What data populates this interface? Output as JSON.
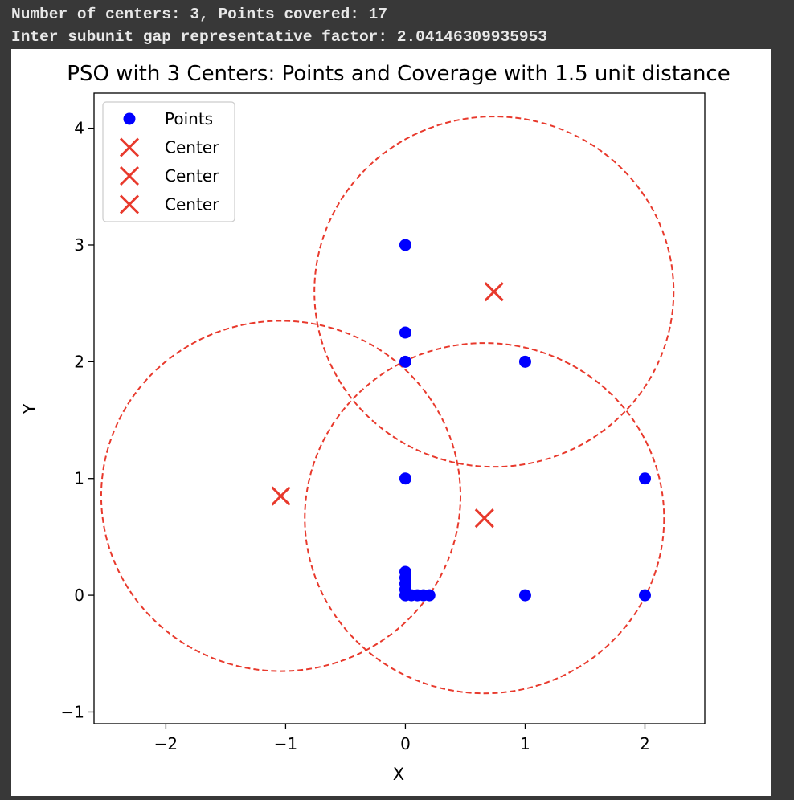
{
  "console": {
    "line1": "Number of centers: 3, Points covered: 17",
    "line2": "Inter subunit gap representative factor: 2.04146309935953"
  },
  "chart_data": {
    "type": "scatter",
    "title": "PSO with 3 Centers: Points and Coverage with 1.5 unit distance",
    "xlabel": "X",
    "ylabel": "Y",
    "xlim": [
      -2.6,
      2.5
    ],
    "ylim": [
      -1.1,
      4.3
    ],
    "xticks": [
      -2,
      -1,
      0,
      1,
      2
    ],
    "xtick_labels": [
      "−2",
      "−1",
      "0",
      "1",
      "2"
    ],
    "yticks": [
      -1,
      0,
      1,
      2,
      3,
      4
    ],
    "ytick_labels": [
      "−1",
      "0",
      "1",
      "2",
      "3",
      "4"
    ],
    "grid": false,
    "legend_position": "upper-left",
    "point_color": "#0000ff",
    "center_color": "#e8392c",
    "circle_radius": 1.5,
    "series": [
      {
        "name": "Points",
        "marker": "circle",
        "points": [
          [
            0,
            3
          ],
          [
            0,
            2.25
          ],
          [
            0,
            2
          ],
          [
            1,
            2
          ],
          [
            0,
            1
          ],
          [
            2,
            1
          ],
          [
            0,
            0.2
          ],
          [
            0,
            0.15
          ],
          [
            0,
            0.1
          ],
          [
            0,
            0.05
          ],
          [
            0,
            0
          ],
          [
            0.05,
            0
          ],
          [
            0.1,
            0
          ],
          [
            0.15,
            0
          ],
          [
            0.2,
            0
          ],
          [
            1,
            0
          ],
          [
            2,
            0
          ]
        ]
      },
      {
        "name": "Center",
        "marker": "x",
        "points": [
          [
            0.74,
            2.6
          ]
        ]
      },
      {
        "name": "Center",
        "marker": "x",
        "points": [
          [
            -1.04,
            0.85
          ]
        ]
      },
      {
        "name": "Center",
        "marker": "x",
        "points": [
          [
            0.66,
            0.66
          ]
        ]
      }
    ]
  }
}
